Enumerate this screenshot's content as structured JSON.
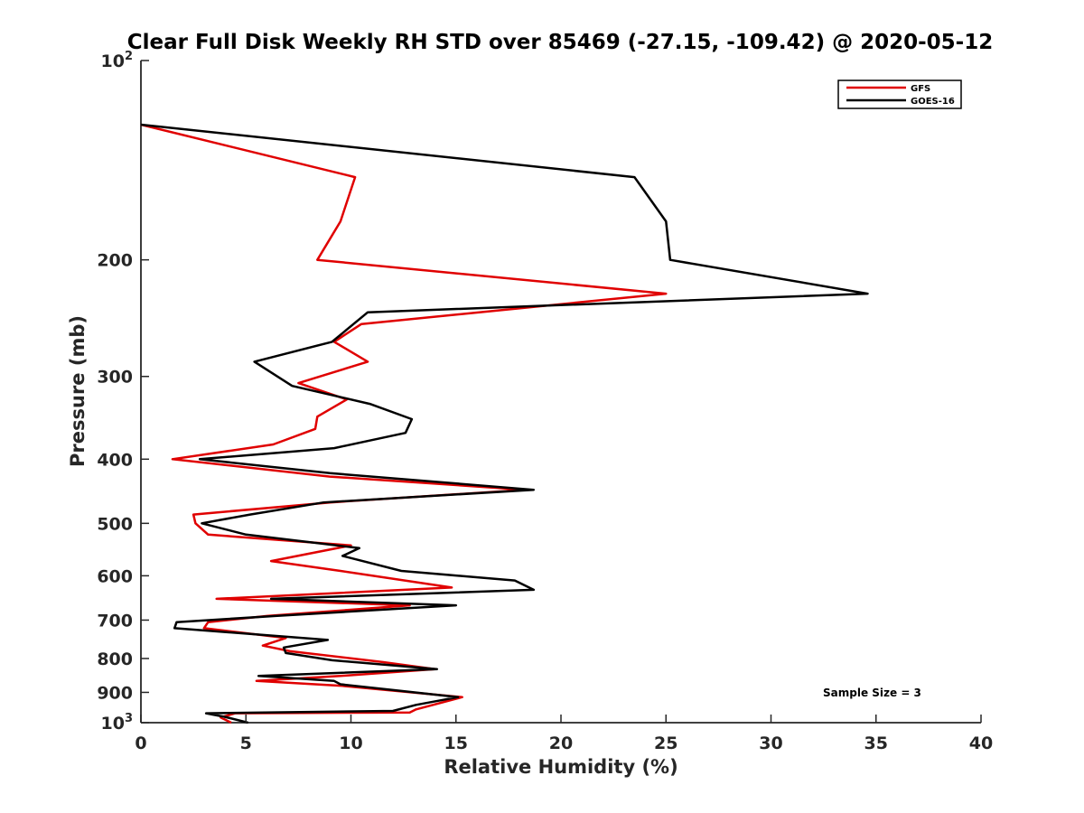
{
  "chart_data": {
    "type": "line",
    "title": "Clear Full Disk Weekly RH STD over 85469 (-27.15, -109.42) @ 2020-05-12",
    "xlabel": "Relative Humidity (%)",
    "ylabel": "Pressure (mb)",
    "xlim": [
      0,
      40
    ],
    "ylim": [
      100,
      1000
    ],
    "y_scale": "log",
    "y_reversed": true,
    "x_ticks": [
      0,
      5,
      10,
      15,
      20,
      25,
      30,
      35,
      40
    ],
    "x_tick_labels": [
      "0",
      "5",
      "10",
      "15",
      "20",
      "25",
      "30",
      "35",
      "40"
    ],
    "y_ticks": [
      100,
      200,
      300,
      400,
      500,
      600,
      700,
      800,
      900,
      1000
    ],
    "y_tick_labels": [
      {
        "base": "10",
        "exp": "2"
      },
      {
        "base": "200",
        "exp": ""
      },
      {
        "base": "300",
        "exp": ""
      },
      {
        "base": "400",
        "exp": ""
      },
      {
        "base": "500",
        "exp": ""
      },
      {
        "base": "600",
        "exp": ""
      },
      {
        "base": "700",
        "exp": ""
      },
      {
        "base": "800",
        "exp": ""
      },
      {
        "base": "900",
        "exp": ""
      },
      {
        "base": "10",
        "exp": "3"
      }
    ],
    "grid": false,
    "legend_position": "top-right",
    "annotation": "Sample Size = 3",
    "series": [
      {
        "name": "GFS",
        "color": "#e00000",
        "points": [
          [
            0,
            125
          ],
          [
            10.2,
            150
          ],
          [
            9.5,
            175
          ],
          [
            8.4,
            200
          ],
          [
            25,
            225
          ],
          [
            10.5,
            250
          ],
          [
            9.2,
            266
          ],
          [
            10.8,
            285
          ],
          [
            7.5,
            307
          ],
          [
            9.8,
            325
          ],
          [
            8.4,
            345
          ],
          [
            8.3,
            360
          ],
          [
            6.3,
            380
          ],
          [
            1.5,
            400
          ],
          [
            9,
            425
          ],
          [
            18.3,
            445
          ],
          [
            9,
            465
          ],
          [
            2.5,
            485
          ],
          [
            2.6,
            500
          ],
          [
            3.2,
            520
          ],
          [
            10,
            540
          ],
          [
            6.2,
            570
          ],
          [
            9.5,
            590
          ],
          [
            14.8,
            625
          ],
          [
            3.6,
            650
          ],
          [
            12.8,
            665
          ],
          [
            6,
            690
          ],
          [
            3.2,
            705
          ],
          [
            3,
            720
          ],
          [
            6.9,
            745
          ],
          [
            5.8,
            765
          ],
          [
            7.1,
            780
          ],
          [
            11.5,
            810
          ],
          [
            14,
            830
          ],
          [
            9.5,
            850
          ],
          [
            5.5,
            865
          ],
          [
            9.6,
            880
          ],
          [
            15.3,
            915
          ],
          [
            13.1,
            955
          ],
          [
            12.8,
            965
          ],
          [
            4.5,
            968
          ],
          [
            3.8,
            982
          ],
          [
            4.3,
            1000
          ]
        ]
      },
      {
        "name": "GOES-16",
        "color": "#000000",
        "points": [
          [
            0,
            125
          ],
          [
            23.5,
            150
          ],
          [
            25,
            175
          ],
          [
            25.2,
            200
          ],
          [
            34.6,
            225
          ],
          [
            10.8,
            240
          ],
          [
            9.1,
            266
          ],
          [
            5.4,
            285
          ],
          [
            7.2,
            310
          ],
          [
            10.9,
            330
          ],
          [
            12.9,
            348
          ],
          [
            12.6,
            365
          ],
          [
            9.2,
            385
          ],
          [
            2.8,
            400
          ],
          [
            9,
            420
          ],
          [
            18.7,
            445
          ],
          [
            8.7,
            465
          ],
          [
            5.2,
            485
          ],
          [
            2.9,
            500
          ],
          [
            5,
            520
          ],
          [
            10.4,
            545
          ],
          [
            9.6,
            560
          ],
          [
            12.4,
            590
          ],
          [
            17.8,
            610
          ],
          [
            18.7,
            630
          ],
          [
            6.2,
            650
          ],
          [
            15,
            665
          ],
          [
            6.4,
            690
          ],
          [
            1.7,
            705
          ],
          [
            1.6,
            720
          ],
          [
            8.9,
            750
          ],
          [
            6.8,
            770
          ],
          [
            6.9,
            785
          ],
          [
            9.1,
            805
          ],
          [
            14.1,
            830
          ],
          [
            5.6,
            850
          ],
          [
            9.2,
            865
          ],
          [
            9.5,
            875
          ],
          [
            15.1,
            915
          ],
          [
            13.1,
            940
          ],
          [
            12,
            960
          ],
          [
            3.1,
            968
          ],
          [
            4,
            980
          ],
          [
            5.1,
            1000
          ]
        ]
      }
    ]
  }
}
